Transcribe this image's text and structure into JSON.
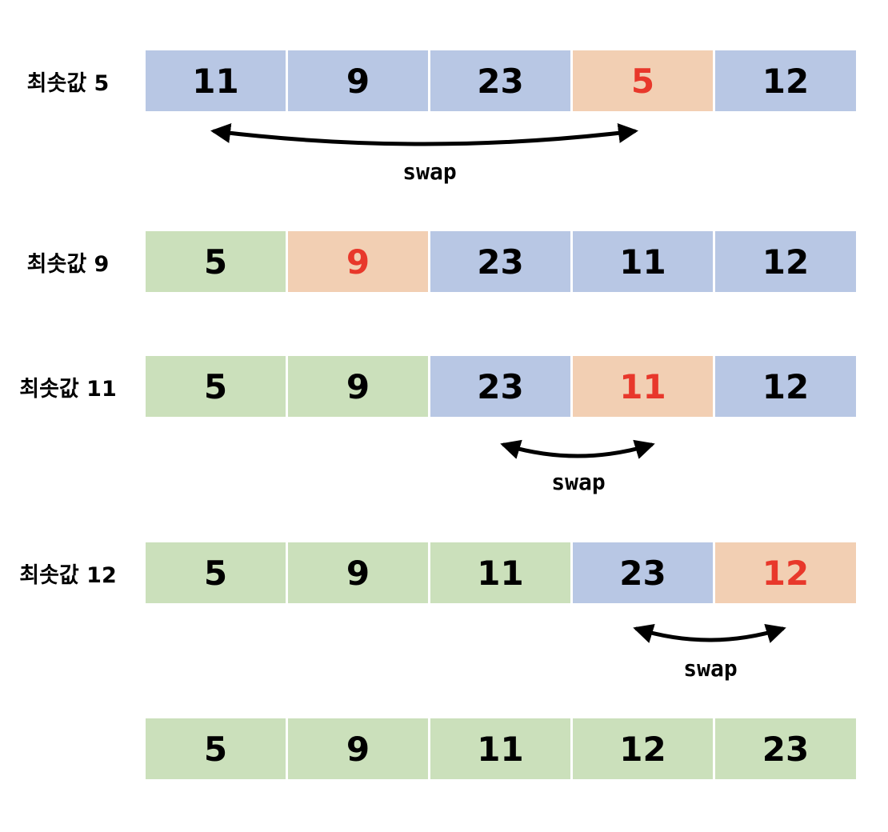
{
  "colors": {
    "unsorted": "#b8c7e4",
    "minimum": "#f2cfb3",
    "sorted": "#cbe0bb",
    "minimum_text": "#e8382b",
    "text": "#000000"
  },
  "rows": [
    {
      "label": "최솟값 5",
      "cells": [
        {
          "value": "11",
          "state": "unsorted"
        },
        {
          "value": "9",
          "state": "unsorted"
        },
        {
          "value": "23",
          "state": "unsorted"
        },
        {
          "value": "5",
          "state": "minimum"
        },
        {
          "value": "12",
          "state": "unsorted"
        }
      ]
    },
    {
      "label": "최솟값 9",
      "cells": [
        {
          "value": "5",
          "state": "sorted"
        },
        {
          "value": "9",
          "state": "minimum"
        },
        {
          "value": "23",
          "state": "unsorted"
        },
        {
          "value": "11",
          "state": "unsorted"
        },
        {
          "value": "12",
          "state": "unsorted"
        }
      ]
    },
    {
      "label": "최솟값 11",
      "cells": [
        {
          "value": "5",
          "state": "sorted"
        },
        {
          "value": "9",
          "state": "sorted"
        },
        {
          "value": "23",
          "state": "unsorted"
        },
        {
          "value": "11",
          "state": "minimum"
        },
        {
          "value": "12",
          "state": "unsorted"
        }
      ]
    },
    {
      "label": "최솟값 12",
      "cells": [
        {
          "value": "5",
          "state": "sorted"
        },
        {
          "value": "9",
          "state": "sorted"
        },
        {
          "value": "11",
          "state": "sorted"
        },
        {
          "value": "23",
          "state": "unsorted"
        },
        {
          "value": "12",
          "state": "minimum"
        }
      ]
    },
    {
      "label": "",
      "cells": [
        {
          "value": "5",
          "state": "sorted"
        },
        {
          "value": "9",
          "state": "sorted"
        },
        {
          "value": "11",
          "state": "sorted"
        },
        {
          "value": "12",
          "state": "sorted"
        },
        {
          "value": "23",
          "state": "sorted"
        }
      ]
    }
  ],
  "swaps": [
    {
      "after_row": 0,
      "from_cell": 0,
      "to_cell": 3,
      "label": "swap"
    },
    {
      "after_row": 2,
      "from_cell": 2,
      "to_cell": 3,
      "label": "swap"
    },
    {
      "after_row": 3,
      "from_cell": 3,
      "to_cell": 4,
      "label": "swap"
    }
  ]
}
